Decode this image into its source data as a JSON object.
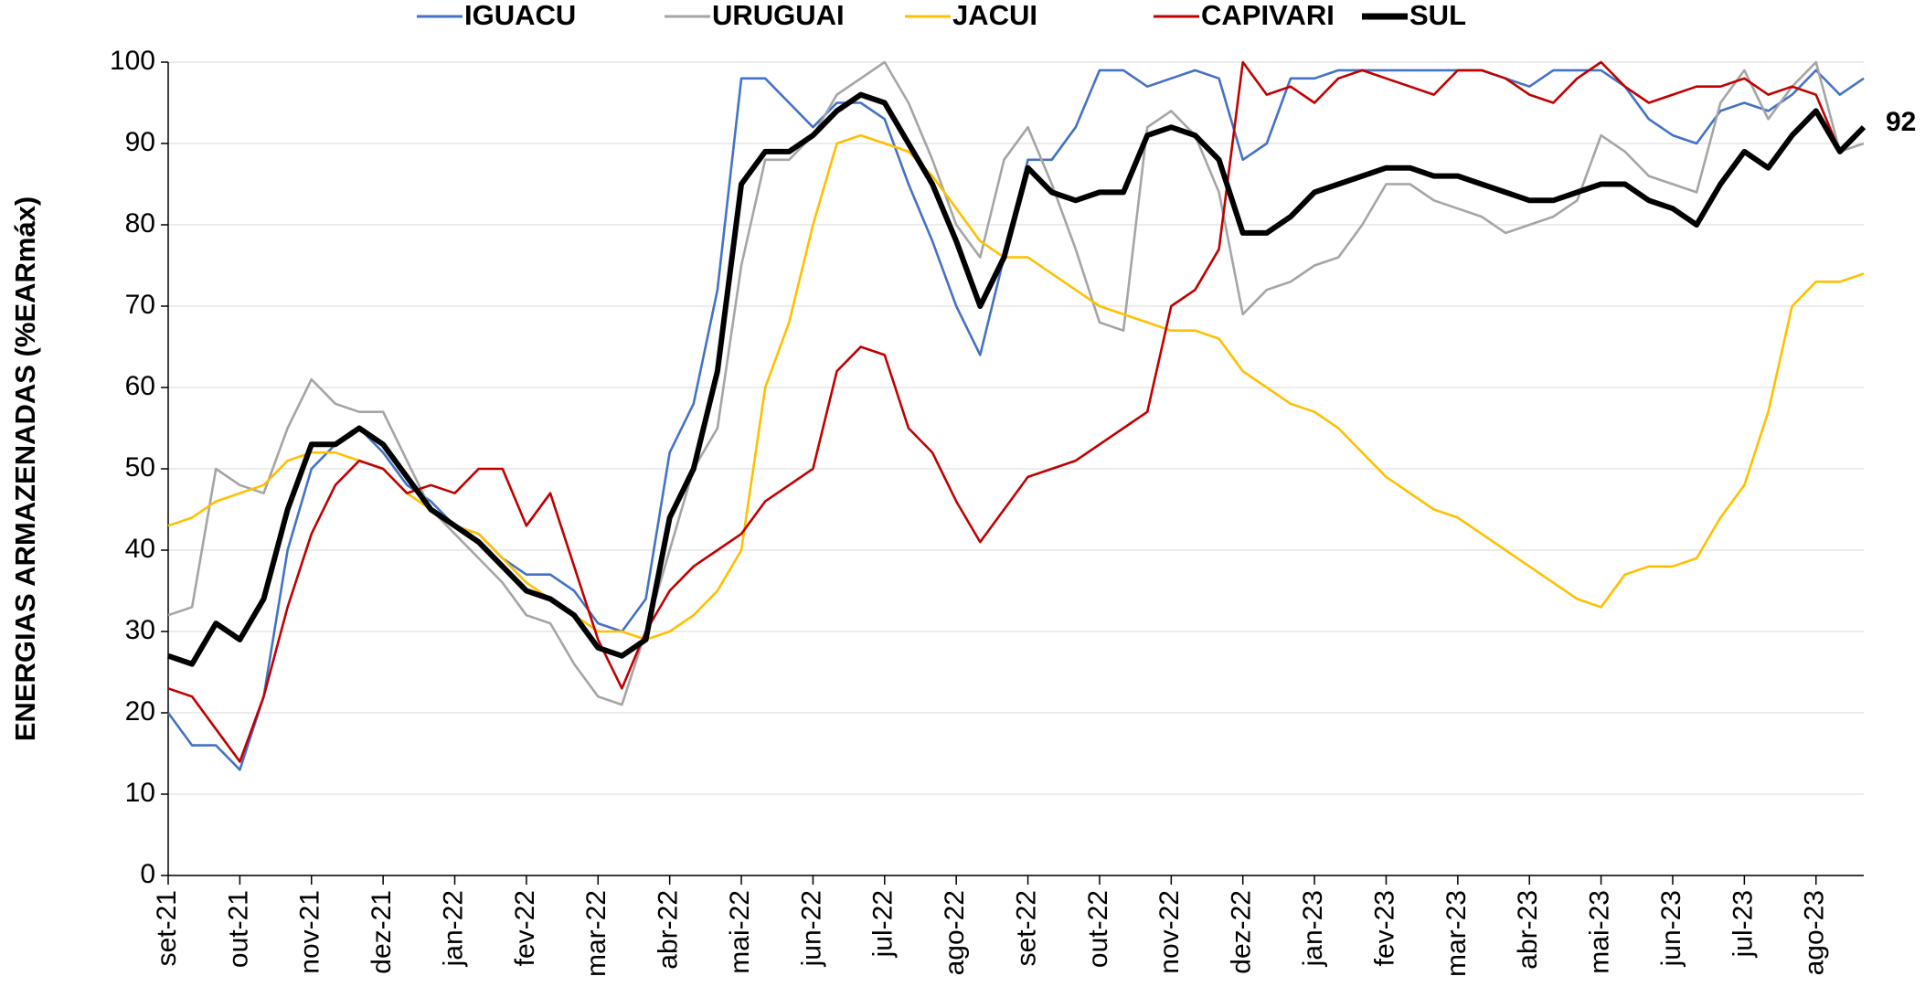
{
  "chart_data": {
    "type": "line",
    "y_label": "ENERGIAS ARMAZENADAS (%EARmáx)",
    "categories": [
      "set-21",
      null,
      null,
      "out-21",
      null,
      null,
      "nov-21",
      null,
      null,
      "dez-21",
      null,
      null,
      "jan-22",
      null,
      null,
      "fev-22",
      null,
      null,
      "mar-22",
      null,
      null,
      "abr-22",
      null,
      null,
      "mai-22",
      null,
      null,
      "jun-22",
      null,
      null,
      "jul-22",
      null,
      null,
      "ago-22",
      null,
      null,
      "set-22",
      null,
      null,
      "out-22",
      null,
      null,
      "nov-22",
      null,
      null,
      "dez-22",
      null,
      null,
      "jan-23",
      null,
      null,
      "fev-23",
      null,
      null,
      "mar-23",
      null,
      null,
      "abr-23",
      null,
      null,
      "mai-23",
      null,
      null,
      "jun-23",
      null,
      null,
      "jul-23",
      null,
      null,
      "ago-23",
      null,
      null
    ],
    "series": [
      {
        "name": "IGUACU",
        "color": "#4472c4",
        "values": [
          20,
          16,
          16,
          13,
          22,
          40,
          50,
          53,
          55,
          52,
          48,
          46,
          43,
          42,
          39,
          37,
          37,
          35,
          31,
          30,
          34,
          52,
          58,
          72,
          98,
          98,
          95,
          92,
          95,
          95,
          93,
          85,
          78,
          70,
          64,
          76,
          88,
          88,
          92,
          99,
          99,
          97,
          98,
          99,
          98,
          88,
          90,
          98,
          98,
          99,
          99,
          99,
          99,
          99,
          99,
          99,
          98,
          97,
          99,
          99,
          99,
          97,
          93,
          91,
          90,
          94,
          95,
          94,
          96,
          99,
          96,
          98
        ]
      },
      {
        "name": "URUGUAI",
        "color": "#a5a5a5",
        "values": [
          32,
          33,
          50,
          48,
          47,
          55,
          61,
          58,
          57,
          57,
          51,
          45,
          42,
          39,
          36,
          32,
          31,
          26,
          22,
          21,
          30,
          40,
          50,
          55,
          75,
          88,
          88,
          91,
          96,
          98,
          100,
          95,
          88,
          80,
          76,
          88,
          92,
          85,
          77,
          68,
          67,
          92,
          94,
          91,
          84,
          69,
          72,
          73,
          75,
          76,
          80,
          85,
          85,
          83,
          82,
          81,
          79,
          80,
          81,
          83,
          91,
          89,
          86,
          85,
          84,
          95,
          99,
          93,
          97,
          100,
          89,
          90
        ]
      },
      {
        "name": "JACUI",
        "color": "#ffc000",
        "values": [
          43,
          44,
          46,
          47,
          48,
          51,
          52,
          52,
          51,
          50,
          47,
          45,
          43,
          42,
          39,
          36,
          34,
          32,
          30,
          30,
          29,
          30,
          32,
          35,
          40,
          60,
          68,
          80,
          90,
          91,
          90,
          89,
          86,
          82,
          78,
          76,
          76,
          74,
          72,
          70,
          69,
          68,
          67,
          67,
          66,
          62,
          60,
          58,
          57,
          55,
          52,
          49,
          47,
          45,
          44,
          42,
          40,
          38,
          36,
          34,
          33,
          37,
          38,
          38,
          39,
          44,
          48,
          57,
          70,
          73,
          73,
          74
        ]
      },
      {
        "name": "CAPIVARI",
        "color": "#c00000",
        "values": [
          23,
          22,
          18,
          14,
          22,
          33,
          42,
          48,
          51,
          50,
          47,
          48,
          47,
          50,
          50,
          43,
          47,
          38,
          29,
          23,
          30,
          35,
          38,
          40,
          42,
          46,
          48,
          50,
          62,
          65,
          64,
          55,
          52,
          46,
          41,
          45,
          49,
          50,
          51,
          53,
          55,
          57,
          70,
          72,
          77,
          100,
          96,
          97,
          95,
          98,
          99,
          98,
          97,
          96,
          99,
          99,
          98,
          96,
          95,
          98,
          100,
          97,
          95,
          96,
          97,
          97,
          98,
          96,
          97,
          96,
          89,
          92
        ]
      },
      {
        "name": "SUL",
        "color": "#000000",
        "values": [
          27,
          26,
          31,
          29,
          34,
          45,
          53,
          53,
          55,
          53,
          49,
          45,
          43,
          41,
          38,
          35,
          34,
          32,
          28,
          27,
          29,
          44,
          50,
          62,
          85,
          89,
          89,
          91,
          94,
          96,
          95,
          90,
          85,
          78,
          70,
          76,
          87,
          84,
          83,
          84,
          84,
          91,
          92,
          91,
          88,
          79,
          79,
          81,
          84,
          85,
          86,
          87,
          87,
          86,
          86,
          85,
          84,
          83,
          83,
          84,
          85,
          85,
          83,
          82,
          80,
          85,
          89,
          87,
          91,
          94,
          89,
          92
        ]
      }
    ],
    "annotations": [
      "92"
    ],
    "ylim": [
      0,
      100
    ],
    "yticks": [
      0,
      10,
      20,
      30,
      40,
      50,
      60,
      70,
      80,
      90,
      100
    ],
    "grid": true
  }
}
